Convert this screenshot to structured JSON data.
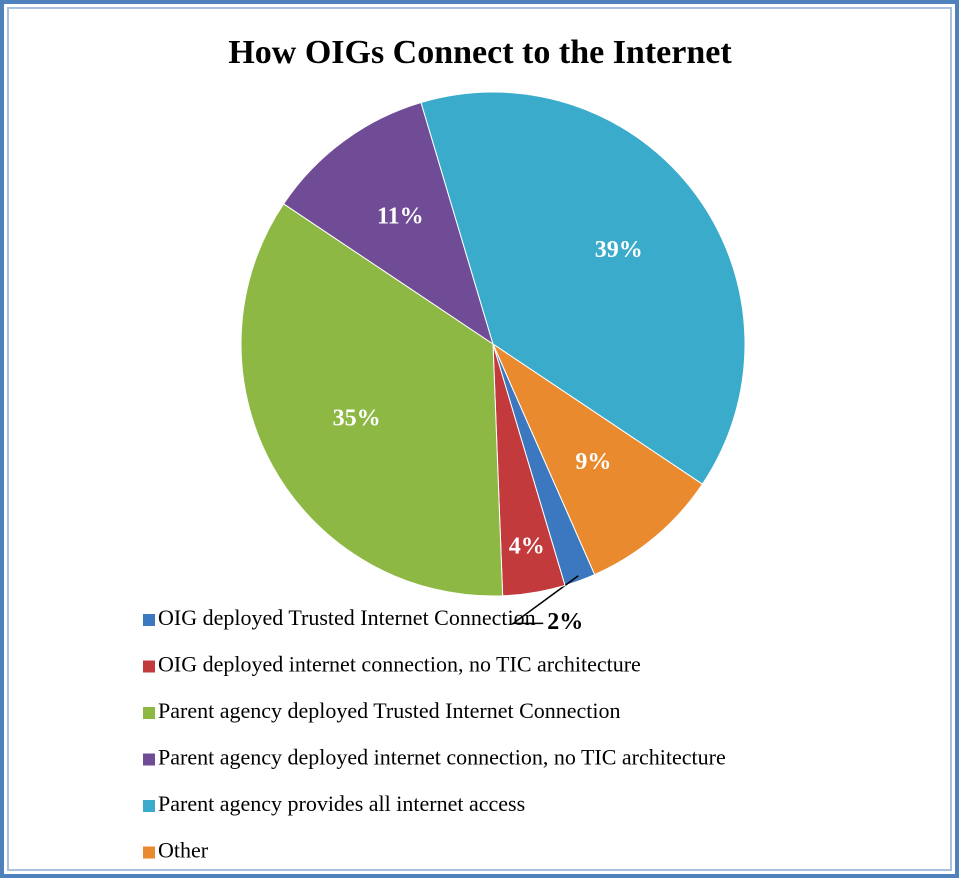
{
  "chart_data": {
    "type": "pie",
    "title": "How OIGs Connect to the Internet",
    "categories": [
      "OIG deployed Trusted Internet Connection",
      "OIG deployed internet connection, no TIC architecture",
      "Parent agency deployed Trusted Internet Connection",
      "Parent agency deployed internet connection, no TIC architecture",
      "Parent agency provides all internet access",
      "Other"
    ],
    "values": [
      2,
      4,
      35,
      11,
      39,
      9
    ],
    "value_labels": [
      "2%",
      "4%",
      "35%",
      "11%",
      "39%",
      "9%"
    ],
    "colors": [
      "#3b78c0",
      "#c33a3c",
      "#8db844",
      "#704b96",
      "#3aabcb",
      "#ea8a2e"
    ],
    "legend": "bottom"
  }
}
